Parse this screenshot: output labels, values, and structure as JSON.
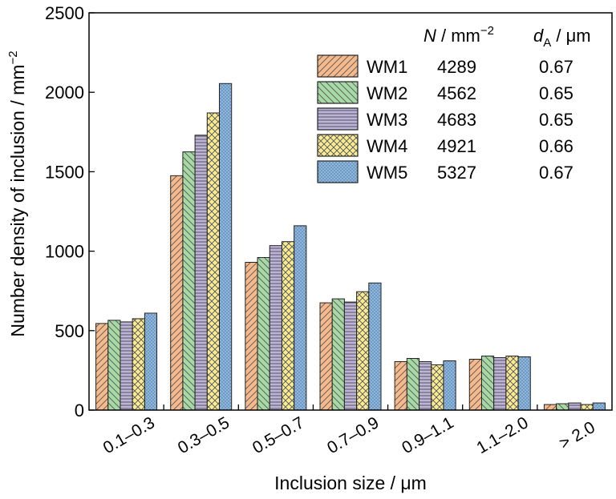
{
  "chart_data": {
    "type": "bar",
    "categories": [
      "0.1–0.3",
      "0.3–0.5",
      "0.5–0.7",
      "0.7–0.9",
      "0.9–1.1",
      "1.1–2.0",
      "> 2.0"
    ],
    "series": [
      {
        "name": "WM1",
        "values": [
          545,
          1475,
          930,
          675,
          305,
          320,
          35
        ],
        "color": "#F6B98C",
        "pattern": "diag-right",
        "N": "4289",
        "dA": "0.67"
      },
      {
        "name": "WM2",
        "values": [
          565,
          1625,
          960,
          700,
          325,
          340,
          40
        ],
        "color": "#A7D9A5",
        "pattern": "diag-left",
        "N": "4562",
        "dA": "0.65"
      },
      {
        "name": "WM3",
        "values": [
          555,
          1730,
          1035,
          680,
          305,
          330,
          45
        ],
        "color": "#BDB4DC",
        "pattern": "horizontal",
        "N": "4683",
        "dA": "0.65"
      },
      {
        "name": "WM4",
        "values": [
          575,
          1870,
          1060,
          745,
          285,
          340,
          35
        ],
        "color": "#F8EB93",
        "pattern": "cross",
        "N": "4921",
        "dA": "0.66"
      },
      {
        "name": "WM5",
        "values": [
          610,
          2055,
          1160,
          800,
          310,
          335,
          45
        ],
        "color": "#8CB6DE",
        "pattern": "dots",
        "N": "5327",
        "dA": "0.67"
      }
    ],
    "xlabel": "Inclusion size / μm",
    "ylabel": "Number density of inclusion / mm",
    "ylabel_superscript": "−2",
    "ylim": [
      0,
      2500
    ],
    "yticks": [
      "0",
      "500",
      "1000",
      "1500",
      "2000",
      "2500"
    ],
    "grid": false,
    "legend": {
      "placement": "top-right",
      "header_N": "N",
      "header_N_unit": " / mm",
      "header_N_sup": "−2",
      "header_dA": "d",
      "header_dA_sub": "A",
      "header_dA_unit": " / μm"
    }
  }
}
